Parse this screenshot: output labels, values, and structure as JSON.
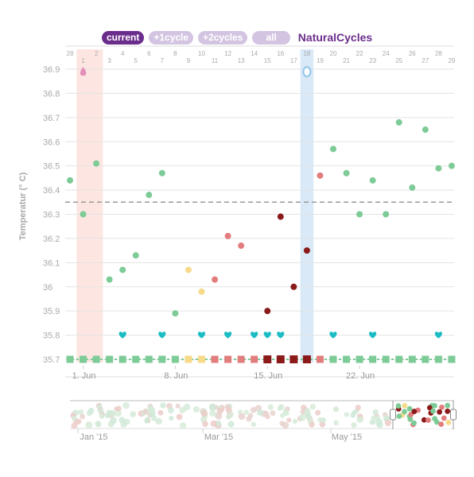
{
  "buttons": {
    "current": "current",
    "plus1": "+1cycle",
    "plus2": "+2cycles",
    "all": "all",
    "brand": "NaturalCycles"
  },
  "colors": {
    "brand": "#6b2d8c",
    "button_inactive": "#d3c5e2",
    "green": "#7dcb97",
    "pink": "#e27d7d",
    "dark_red": "#8b1a1a",
    "yellow": "#f7da8a",
    "teal": "#1bbcc4",
    "period_band": "#fde6e2",
    "ovulation_band": "#d9e9f8"
  },
  "chart_data": {
    "type": "scatter",
    "ylabel": "Temperatur (° C)",
    "ylim": [
      35.7,
      36.9
    ],
    "y_ticks": [
      "36.9",
      "36.8",
      "36.7",
      "36.6",
      "36.5",
      "36.4",
      "36.3",
      "36.2",
      "36.1",
      "36",
      "35.9",
      "35.8",
      "35.7"
    ],
    "day_labels_top": [
      28,
      1,
      2,
      3,
      4,
      5,
      6,
      7,
      8,
      9,
      10,
      11,
      12,
      13,
      14,
      15,
      16,
      17,
      18,
      19,
      20,
      21,
      22,
      23,
      24,
      25,
      26,
      27,
      28,
      29
    ],
    "date_labels": [
      {
        "day_index": 1,
        "label": "1. Jun"
      },
      {
        "day_index": 8,
        "label": "8. Jun"
      },
      {
        "day_index": 15,
        "label": "15. Jun"
      },
      {
        "day_index": 22,
        "label": "22. Jun"
      }
    ],
    "coverline": 36.35,
    "period_days": [
      1,
      2
    ],
    "ovulation_day": 18,
    "points": [
      {
        "day_index": 0,
        "temp": 36.44,
        "status": "green"
      },
      {
        "day_index": 1,
        "temp": 36.3,
        "status": "green"
      },
      {
        "day_index": 2,
        "temp": 36.51,
        "status": "green"
      },
      {
        "day_index": 3,
        "temp": 36.03,
        "status": "green"
      },
      {
        "day_index": 4,
        "temp": 36.07,
        "status": "green"
      },
      {
        "day_index": 5,
        "temp": 36.13,
        "status": "green"
      },
      {
        "day_index": 6,
        "temp": 36.38,
        "status": "green"
      },
      {
        "day_index": 7,
        "temp": 36.47,
        "status": "green"
      },
      {
        "day_index": 8,
        "temp": 35.89,
        "status": "green"
      },
      {
        "day_index": 9,
        "temp": 36.07,
        "status": "yellow"
      },
      {
        "day_index": 10,
        "temp": 35.98,
        "status": "yellow"
      },
      {
        "day_index": 11,
        "temp": 36.03,
        "status": "pink"
      },
      {
        "day_index": 12,
        "temp": 36.21,
        "status": "pink"
      },
      {
        "day_index": 13,
        "temp": 36.17,
        "status": "pink"
      },
      {
        "day_index": 15,
        "temp": 35.9,
        "status": "dark_red"
      },
      {
        "day_index": 16,
        "temp": 36.29,
        "status": "dark_red"
      },
      {
        "day_index": 17,
        "temp": 36.0,
        "status": "dark_red"
      },
      {
        "day_index": 18,
        "temp": 36.15,
        "status": "dark_red"
      },
      {
        "day_index": 19,
        "temp": 36.46,
        "status": "pink"
      },
      {
        "day_index": 20,
        "temp": 36.57,
        "status": "green"
      },
      {
        "day_index": 21,
        "temp": 36.47,
        "status": "green"
      },
      {
        "day_index": 22,
        "temp": 36.3,
        "status": "green"
      },
      {
        "day_index": 23,
        "temp": 36.44,
        "status": "green"
      },
      {
        "day_index": 24,
        "temp": 36.3,
        "status": "green"
      },
      {
        "day_index": 25,
        "temp": 36.68,
        "status": "green"
      },
      {
        "day_index": 26,
        "temp": 36.41,
        "status": "green"
      },
      {
        "day_index": 27,
        "temp": 36.65,
        "status": "green"
      },
      {
        "day_index": 28,
        "temp": 36.49,
        "status": "green"
      },
      {
        "day_index": 29,
        "temp": 36.5,
        "status": "green"
      }
    ],
    "markers": [
      {
        "day_index": 1,
        "temp": 36.85,
        "icon": "drop-icon",
        "color": "#e58fb8"
      },
      {
        "day_index": 18,
        "temp": 36.85,
        "icon": "egg-icon",
        "color": "#8fc4ea"
      }
    ],
    "hearts": [
      4,
      7,
      10,
      12,
      14,
      15,
      16,
      20,
      23,
      28
    ],
    "day_status": [
      "green",
      "green",
      "green",
      "green",
      "green",
      "green",
      "green",
      "green",
      "green",
      "yellow",
      "yellow",
      "pink",
      "pink",
      "pink",
      "pink",
      "dark_red",
      "dark_red",
      "dark_red",
      "dark_red",
      "pink",
      "green",
      "green",
      "green",
      "green",
      "green",
      "green",
      "green",
      "green",
      "green",
      "green"
    ]
  },
  "navigator": {
    "month_labels": [
      "Jan '15",
      "Mar '15",
      "May '15"
    ]
  }
}
